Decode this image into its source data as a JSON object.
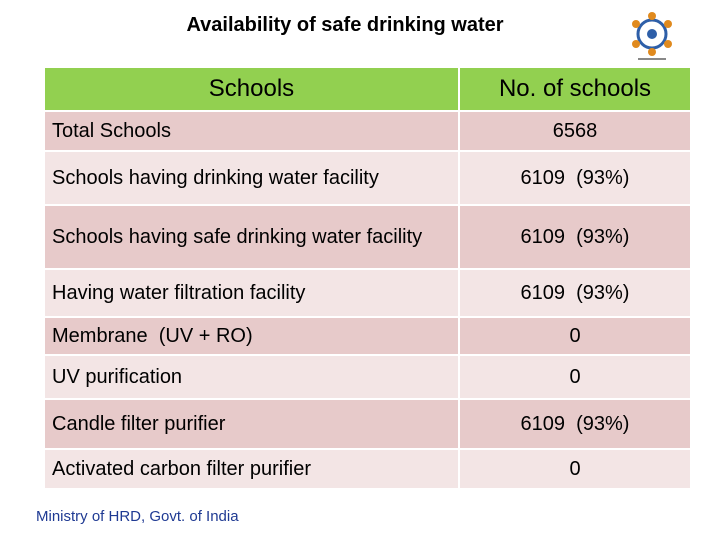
{
  "title": "Availability of safe drinking water",
  "table": {
    "header": [
      "Schools",
      "No. of schools"
    ],
    "rows": [
      [
        "Total Schools",
        "6568"
      ],
      [
        "Schools having drinking water facility",
        "6109  (93%)"
      ],
      [
        "Schools having safe drinking water facility",
        "6109  (93%)"
      ],
      [
        "Having water filtration facility",
        "6109  (93%)"
      ],
      [
        "Membrane  (UV + RO)",
        "0"
      ],
      [
        "UV purification",
        "0"
      ],
      [
        "Candle filter purifier",
        "6109  (93%)"
      ],
      [
        "Activated carbon filter purifier",
        "0"
      ]
    ]
  },
  "footer": "Ministry of HRD, Govt. of India"
}
